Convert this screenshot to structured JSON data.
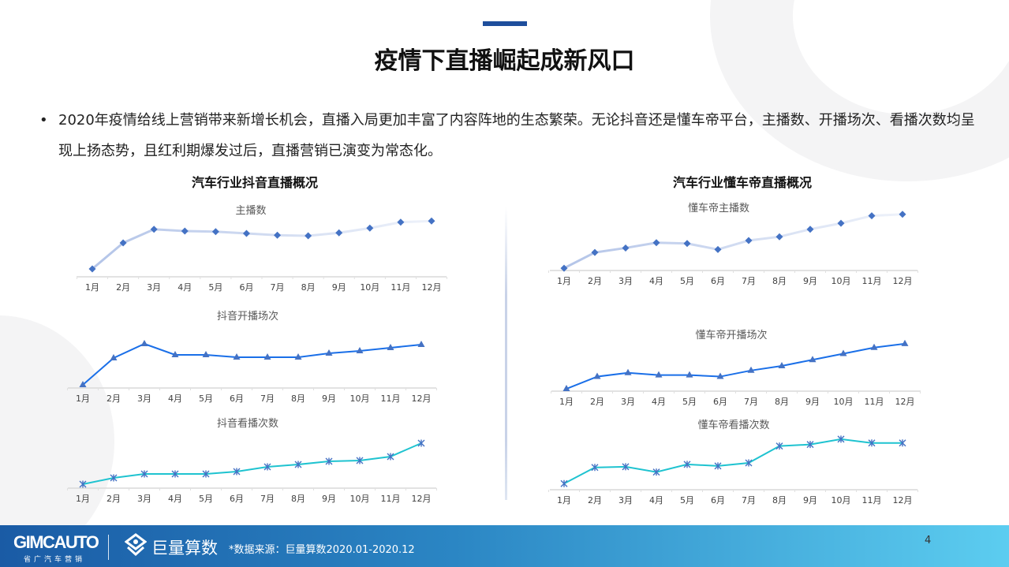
{
  "header": {
    "title": "疫情下直播崛起成新风口"
  },
  "bullet": {
    "marker": "•",
    "text": "2020年疫情给线上营销带来新增长机会，直播入局更加丰富了内容阵地的生态繁荣。无论抖音还是懂车帝平台，主播数、开播场次、看播次数均呈现上扬态势，且红利期爆发过后，直播营销已演变为常态化。"
  },
  "sections": {
    "left_title": "汽车行业抖音直播概况",
    "right_title": "汽车行业懂车帝直播概况"
  },
  "colors": {
    "accent": "#1e4e9c",
    "marker": "#4472c4",
    "line_light": "#c3d0ec",
    "line_blue": "#1a6fe8",
    "line_teal": "#1fc3d0"
  },
  "chart_data": [
    {
      "type": "line",
      "title": "主播数",
      "categories": [
        "1月",
        "2月",
        "3月",
        "4月",
        "5月",
        "6月",
        "7月",
        "8月",
        "9月",
        "10月",
        "11月",
        "12月"
      ],
      "values": [
        12,
        56,
        79,
        76,
        75,
        72,
        69,
        68,
        73,
        81,
        91,
        93
      ],
      "ylim": [
        0,
        100
      ],
      "marker": "diamond",
      "note": "relative index, no y axis shown"
    },
    {
      "type": "line",
      "title": "抖音开播场次",
      "categories": [
        "1月",
        "2月",
        "3月",
        "4月",
        "5月",
        "6月",
        "7月",
        "8月",
        "9月",
        "10月",
        "11月",
        "12月"
      ],
      "values": [
        3,
        37,
        55,
        41,
        41,
        38,
        38,
        38,
        43,
        46,
        50,
        54
      ],
      "ylim": [
        0,
        60
      ],
      "marker": "triangle"
    },
    {
      "type": "line",
      "title": "抖音看播次数",
      "categories": [
        "1月",
        "2月",
        "3月",
        "4月",
        "5月",
        "6月",
        "7月",
        "8月",
        "9月",
        "10月",
        "11月",
        "12月"
      ],
      "values": [
        4,
        12,
        17,
        17,
        17,
        20,
        26,
        29,
        33,
        34,
        39,
        56
      ],
      "ylim": [
        0,
        60
      ],
      "marker": "asterisk"
    },
    {
      "type": "line",
      "title": "懂车帝主播数",
      "categories": [
        "1月",
        "2月",
        "3月",
        "4月",
        "5月",
        "6月",
        "7月",
        "8月",
        "9月",
        "10月",
        "11月",
        "12月"
      ],
      "values": [
        2,
        23,
        29,
        36,
        35,
        27,
        39,
        44,
        54,
        62,
        72,
        74
      ],
      "ylim": [
        0,
        80
      ],
      "marker": "diamond"
    },
    {
      "type": "line",
      "title": "懂车帝开播场次",
      "categories": [
        "1月",
        "2月",
        "3月",
        "4月",
        "5月",
        "6月",
        "7月",
        "8月",
        "9月",
        "10月",
        "11月",
        "12月"
      ],
      "values": [
        2,
        18,
        23,
        20,
        20,
        18,
        26,
        32,
        40,
        48,
        56,
        61
      ],
      "ylim": [
        0,
        65
      ],
      "marker": "triangle"
    },
    {
      "type": "line",
      "title": "懂车帝看播次数",
      "categories": [
        "1月",
        "2月",
        "3月",
        "4月",
        "5月",
        "6月",
        "7月",
        "8月",
        "9月",
        "10月",
        "11月",
        "12月"
      ],
      "values": [
        7,
        28,
        29,
        22,
        32,
        30,
        34,
        56,
        58,
        65,
        60,
        60
      ],
      "ylim": [
        0,
        70
      ],
      "marker": "asterisk"
    }
  ],
  "footer": {
    "brand": "GIMCAUTO",
    "brand_sub": "省广汽车营销",
    "partner": "巨量算数",
    "source": "*数据来源：巨量算数2020.01-2020.12",
    "page_number": "4"
  }
}
